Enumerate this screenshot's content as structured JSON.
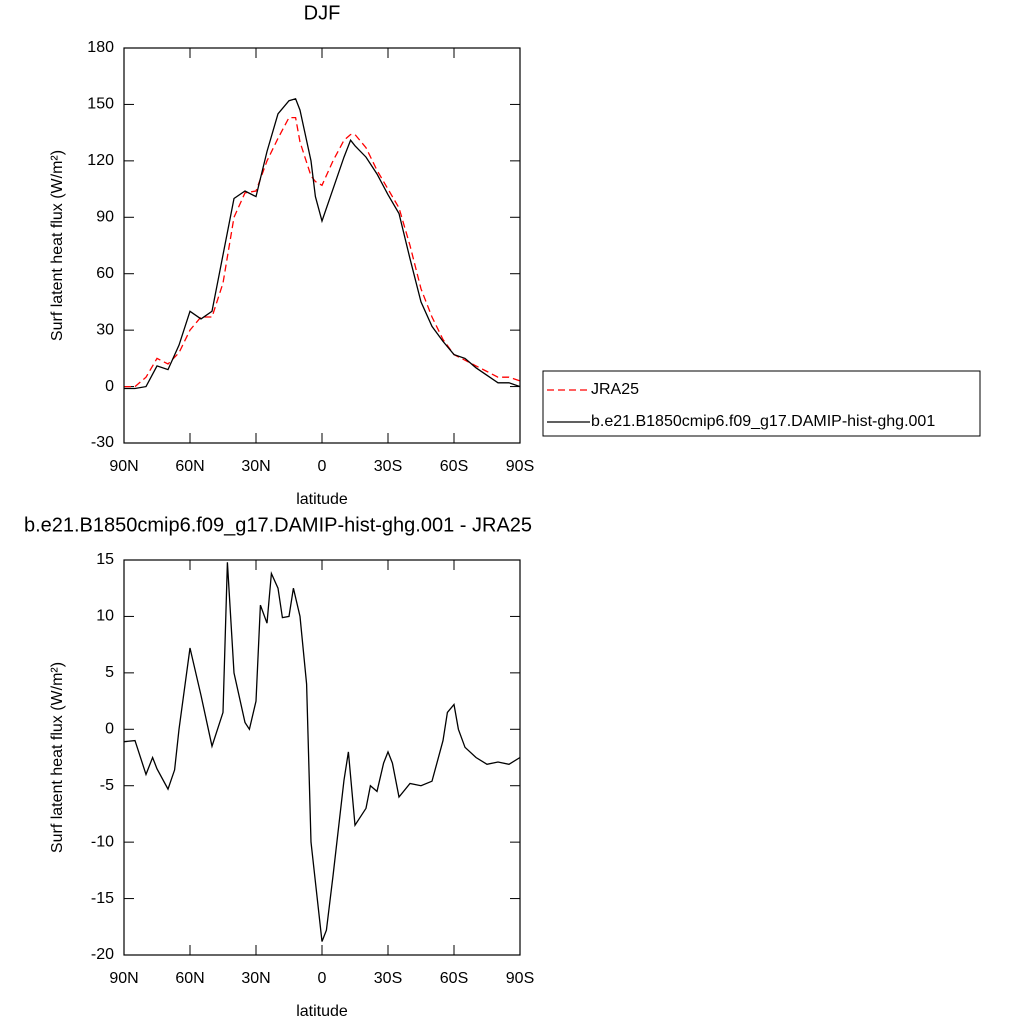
{
  "chart_data": [
    {
      "type": "line",
      "title": "DJF",
      "xlabel": "latitude",
      "ylabel": "Surf latent heat flux (W/m²)",
      "x": [
        90,
        85,
        80,
        75,
        70,
        65,
        60,
        55,
        50,
        45,
        40,
        35,
        30,
        25,
        20,
        15,
        12,
        10,
        5,
        3,
        0,
        -5,
        -10,
        -13,
        -15,
        -20,
        -25,
        -30,
        -35,
        -40,
        -45,
        -50,
        -55,
        -60,
        -65,
        -70,
        -75,
        -80,
        -85,
        -90
      ],
      "series": [
        {
          "name": "JRA25",
          "color": "#ff0000",
          "dash": "dashed",
          "values": [
            0,
            0,
            5,
            15,
            12,
            18,
            30,
            37,
            37,
            55,
            90,
            103,
            104,
            120,
            132,
            143,
            143,
            130,
            112,
            109,
            107,
            120,
            131,
            134,
            134,
            127,
            115,
            105,
            95,
            75,
            52,
            37,
            25,
            17,
            14,
            11,
            8,
            5,
            5,
            3
          ]
        },
        {
          "name": "b.e21.B1850cmip6.f09_g17.DAMIP-hist-ghg.001",
          "color": "#000000",
          "dash": "solid",
          "values": [
            -1,
            -1,
            0,
            11,
            9,
            22,
            40,
            36,
            40,
            70,
            100,
            104,
            101,
            125,
            145,
            152,
            153,
            147,
            120,
            101,
            88,
            105,
            122,
            131,
            128,
            122,
            113,
            102,
            92,
            68,
            45,
            32,
            24,
            17,
            15,
            10,
            6,
            2,
            2,
            0
          ]
        }
      ],
      "xlim": [
        90,
        -90
      ],
      "xticks": [
        {
          "value": 90,
          "label": "90N"
        },
        {
          "value": 60,
          "label": "60N"
        },
        {
          "value": 30,
          "label": "30N"
        },
        0,
        {
          "value": -30,
          "label": "30S"
        },
        {
          "value": -60,
          "label": "60S"
        },
        {
          "value": -90,
          "label": "90S"
        }
      ],
      "ylim": [
        -30,
        180
      ],
      "yticks": [
        -30,
        0,
        30,
        60,
        90,
        120,
        150,
        180
      ],
      "legend": "outside-right"
    },
    {
      "type": "line",
      "title": "b.e21.B1850cmip6.f09_g17.DAMIP-hist-ghg.001 - JRA25",
      "xlabel": "latitude",
      "ylabel": "Surf latent heat flux (W/m²)",
      "x": [
        90,
        85,
        80,
        77,
        75,
        70,
        67,
        65,
        60,
        55,
        50,
        45,
        43,
        40,
        35,
        33,
        30,
        28,
        25,
        23,
        20,
        18,
        15,
        13,
        10,
        7,
        5,
        0,
        -2,
        -5,
        -10,
        -12,
        -15,
        -20,
        -22,
        -25,
        -28,
        -30,
        -32,
        -35,
        -40,
        -45,
        -50,
        -55,
        -57,
        -60,
        -62,
        -65,
        -70,
        -75,
        -80,
        -85,
        -90
      ],
      "series": [
        {
          "color": "#000000",
          "dash": "solid",
          "values": [
            -1.1,
            -1.0,
            -4.0,
            -2.5,
            -3.5,
            -5.3,
            -3.6,
            0,
            7.2,
            3,
            -1.5,
            1.5,
            14.8,
            5,
            0.6,
            0,
            2.5,
            11,
            9.4,
            13.8,
            12.5,
            9.9,
            10,
            12.5,
            10,
            4,
            -10,
            -18.8,
            -17.8,
            -13,
            -4.5,
            -2,
            -8.5,
            -7,
            -5,
            -5.5,
            -3,
            -2,
            -3,
            -6,
            -4.8,
            -5,
            -4.6,
            -1,
            1.5,
            2.2,
            0,
            -1.6,
            -2.5,
            -3.1,
            -2.9,
            -3.1,
            -2.5
          ]
        }
      ],
      "xlim": [
        90,
        -90
      ],
      "xticks": [
        {
          "value": 90,
          "label": "90N"
        },
        {
          "value": 60,
          "label": "60N"
        },
        {
          "value": 30,
          "label": "30N"
        },
        0,
        {
          "value": -30,
          "label": "30S"
        },
        {
          "value": -60,
          "label": "60S"
        },
        {
          "value": -90,
          "label": "90S"
        }
      ],
      "ylim": [
        -20,
        15
      ],
      "yticks": [
        -20,
        -15,
        -10,
        -5,
        0,
        5,
        10,
        15
      ]
    }
  ]
}
